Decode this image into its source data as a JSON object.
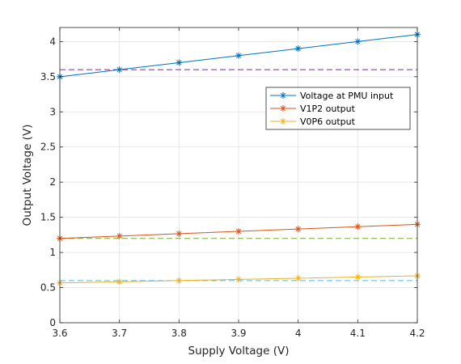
{
  "chart_data": {
    "type": "line",
    "title": "",
    "xlabel": "Supply Voltage (V)",
    "ylabel": "Output Voltage (V)",
    "xlim": [
      3.6,
      4.2
    ],
    "ylim": [
      0,
      4.2
    ],
    "xticks": [
      3.6,
      3.7,
      3.8,
      3.9,
      4.0,
      4.1,
      4.2
    ],
    "xtick_labels": [
      "3.6",
      "3.7",
      "3.8",
      "3.9",
      "4",
      "4.1",
      "4.2"
    ],
    "yticks": [
      0,
      0.5,
      1,
      1.5,
      2,
      2.5,
      3,
      3.5,
      4
    ],
    "ytick_labels": [
      "0",
      "0.5",
      "1",
      "1.5",
      "2",
      "2.5",
      "3",
      "3.5",
      "4"
    ],
    "grid": true,
    "legend_position": "right, upper-middle",
    "x": [
      3.6,
      3.7,
      3.8,
      3.9,
      4.0,
      4.1,
      4.2
    ],
    "series": [
      {
        "name": "Voltage at PMU input",
        "color": "#0072BD",
        "marker": "asterisk",
        "values": [
          3.5,
          3.6,
          3.7,
          3.8,
          3.9,
          4.0,
          4.1
        ]
      },
      {
        "name": "V1P2 output",
        "color": "#D95319",
        "marker": "asterisk",
        "values": [
          1.2,
          1.233,
          1.267,
          1.3,
          1.333,
          1.367,
          1.4
        ]
      },
      {
        "name": "V0P6 output",
        "color": "#EDB120",
        "marker": "asterisk",
        "values": [
          0.567,
          0.583,
          0.6,
          0.617,
          0.633,
          0.65,
          0.667
        ]
      }
    ],
    "reference_lines": [
      {
        "y": 3.6,
        "color": "#7E2F8E",
        "style": "dashed"
      },
      {
        "y": 1.2,
        "color": "#77AC30",
        "style": "dashed"
      },
      {
        "y": 0.6,
        "color": "#4DBEEE",
        "style": "dashed"
      }
    ]
  }
}
